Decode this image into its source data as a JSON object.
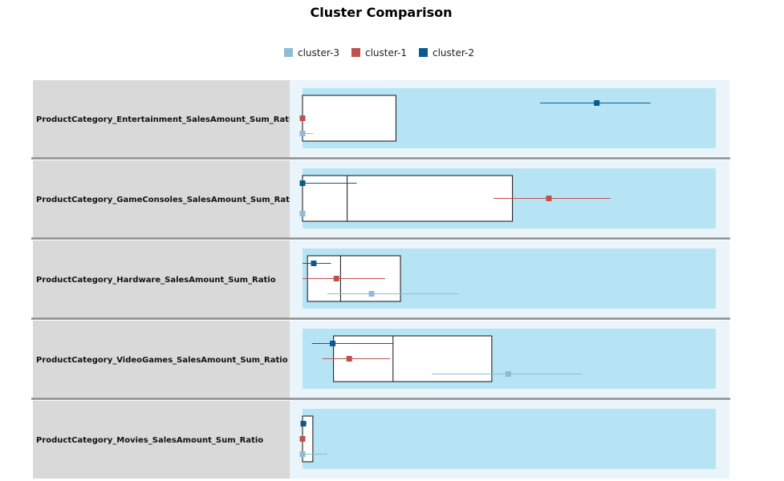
{
  "colors": {
    "cluster_3": "#8fbcd4",
    "cluster_1": "#c0504d",
    "cluster_2": "#0b5a8f",
    "label_bg": "#d9d9da",
    "panel_bg": "#eaf4fb",
    "band_bg": "#b7e4f5",
    "separator": "#8e8e8e"
  },
  "chart_data": {
    "type": "box-comparison",
    "title": "Cluster Comparison",
    "legend": {
      "position": "top-center",
      "items": [
        {
          "name": "cluster-3",
          "color": "#8fbcd4"
        },
        {
          "name": "cluster-1",
          "color": "#c0504d"
        },
        {
          "name": "cluster-2",
          "color": "#0b5a8f"
        }
      ]
    },
    "series_order": [
      "cluster-2",
      "cluster-1",
      "cluster-3"
    ],
    "rows": [
      {
        "label": "ProductCategory_Entertainment_SalesAmount_Sum_Ratio",
        "box": {
          "min": 0.0,
          "q1": 0.0,
          "median": 0.0,
          "q3": 0.226
        },
        "clusters": {
          "cluster-2": {
            "low": 0.575,
            "mean": 0.712,
            "high": 0.842
          },
          "cluster-1": {
            "low": 0.0,
            "mean": 0.0,
            "high": 0.0
          },
          "cluster-3": {
            "low": 0.0,
            "mean": 0.0,
            "high": 0.025
          }
        }
      },
      {
        "label": "ProductCategory_GameConsoles_SalesAmount_Sum_Ratio",
        "box": {
          "min": 0.0,
          "q1": 0.0,
          "median": 0.108,
          "q3": 0.508
        },
        "clusters": {
          "cluster-2": {
            "low": 0.0,
            "mean": 0.0,
            "high": 0.131
          },
          "cluster-1": {
            "low": 0.462,
            "mean": 0.596,
            "high": 0.745
          },
          "cluster-3": {
            "low": 0.0,
            "mean": 0.0,
            "high": 0.0
          }
        }
      },
      {
        "label": "ProductCategory_Hardware_SalesAmount_Sum_Ratio",
        "box": {
          "min": 0.0,
          "q1": 0.012,
          "median": 0.092,
          "q3": 0.237
        },
        "clusters": {
          "cluster-2": {
            "low": 0.0,
            "mean": 0.027,
            "high": 0.069
          },
          "cluster-1": {
            "low": 0.0,
            "mean": 0.082,
            "high": 0.2
          },
          "cluster-3": {
            "low": 0.06,
            "mean": 0.167,
            "high": 0.377
          }
        }
      },
      {
        "label": "ProductCategory_VideoGames_SalesAmount_Sum_Ratio",
        "box": {
          "min": 0.0,
          "q1": 0.075,
          "median": 0.219,
          "q3": 0.458
        },
        "clusters": {
          "cluster-2": {
            "low": 0.023,
            "mean": 0.073,
            "high": 0.219
          },
          "cluster-1": {
            "low": 0.048,
            "mean": 0.113,
            "high": 0.212
          },
          "cluster-3": {
            "low": 0.313,
            "mean": 0.498,
            "high": 0.675
          }
        }
      },
      {
        "label": "ProductCategory_Movies_SalesAmount_Sum_Ratio",
        "box": {
          "min": 0.0,
          "q1": 0.0,
          "median": 0.0,
          "q3": 0.025
        },
        "clusters": {
          "cluster-2": {
            "low": 0.0,
            "mean": 0.002,
            "high": 0.01
          },
          "cluster-1": {
            "low": 0.0,
            "mean": 0.0,
            "high": 0.0
          },
          "cluster-3": {
            "low": 0.0,
            "mean": 0.0,
            "high": 0.06
          }
        }
      }
    ]
  }
}
